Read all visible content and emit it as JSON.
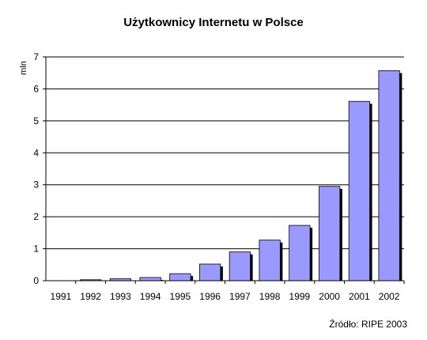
{
  "chart_data": {
    "type": "bar",
    "title": "Użytkownicy Internetu w Polsce",
    "ylabel": "mln",
    "xlabel": "",
    "categories": [
      "1991",
      "1992",
      "1993",
      "1994",
      "1995",
      "1996",
      "1997",
      "1998",
      "1999",
      "2000",
      "2001",
      "2002"
    ],
    "values": [
      0.0,
      0.03,
      0.06,
      0.1,
      0.22,
      0.52,
      0.9,
      1.27,
      1.73,
      2.95,
      5.61,
      6.57
    ],
    "ylim": [
      0,
      7
    ],
    "yticks": [
      "0",
      "1",
      "2",
      "3",
      "4",
      "5",
      "6",
      "7"
    ],
    "grid": true,
    "legend": "none",
    "bar_color": "#9999ff",
    "shadow_color": "#000000",
    "source": "Źródło: RIPE 2003"
  }
}
